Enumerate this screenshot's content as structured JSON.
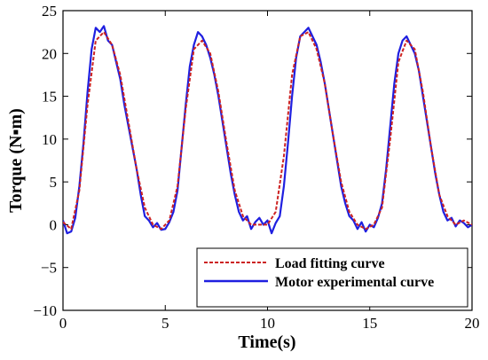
{
  "chart_data": {
    "type": "line",
    "xlabel": "Time(s)",
    "ylabel": "Torque (N▪m)",
    "xlim": [
      0,
      20
    ],
    "ylim": [
      -10,
      25
    ],
    "xticks": [
      0,
      5,
      10,
      15,
      20
    ],
    "yticks": [
      -10,
      -5,
      0,
      5,
      10,
      15,
      20,
      25
    ],
    "xtick_labels": [
      "0",
      "5",
      "10",
      "15",
      "20"
    ],
    "ytick_labels": [
      "−10",
      "−5",
      "0",
      "5",
      "10",
      "15",
      "20",
      "25"
    ],
    "grid": false,
    "legend_position": "bottom-right",
    "series": [
      {
        "name": "Load fitting curve",
        "style": "dashed",
        "color": "#cc2222",
        "x": [
          0,
          0.4,
          0.8,
          1.2,
          1.6,
          2.0,
          2.4,
          2.8,
          3.2,
          3.6,
          4.0,
          4.4,
          4.8,
          5.2,
          5.6,
          6.0,
          6.4,
          6.8,
          7.2,
          7.6,
          8.0,
          8.4,
          8.8,
          9.2,
          9.6,
          10.0,
          10.4,
          10.8,
          11.2,
          11.6,
          12.0,
          12.4,
          12.8,
          13.2,
          13.6,
          14.0,
          14.4,
          14.8,
          15.2,
          15.6,
          16.0,
          16.4,
          16.8,
          17.2,
          17.6,
          18.0,
          18.4,
          18.8,
          19.2,
          19.6,
          20.0
        ],
        "y": [
          0.3,
          -0.5,
          4.0,
          14.0,
          21.5,
          22.5,
          21.0,
          17.5,
          12.0,
          6.5,
          2.0,
          0.0,
          -0.5,
          0.5,
          4.5,
          13.5,
          20.5,
          21.5,
          20.0,
          15.5,
          9.5,
          4.0,
          1.0,
          0.0,
          0.0,
          0.0,
          1.5,
          8.0,
          17.5,
          22.0,
          22.5,
          20.5,
          16.5,
          10.5,
          5.0,
          1.5,
          0.0,
          -0.5,
          0.0,
          2.0,
          10.0,
          19.0,
          21.5,
          20.5,
          15.5,
          9.0,
          3.5,
          1.0,
          0.0,
          0.5,
          0.0
        ]
      },
      {
        "name": "Motor experimental curve",
        "style": "solid",
        "color": "#1f1fe0",
        "x": [
          0,
          0.2,
          0.4,
          0.6,
          0.8,
          1.0,
          1.2,
          1.4,
          1.6,
          1.8,
          2.0,
          2.2,
          2.4,
          2.6,
          2.8,
          3.0,
          3.2,
          3.4,
          3.6,
          3.8,
          4.0,
          4.2,
          4.4,
          4.6,
          4.8,
          5.0,
          5.2,
          5.4,
          5.6,
          5.8,
          6.0,
          6.2,
          6.4,
          6.6,
          6.8,
          7.0,
          7.2,
          7.4,
          7.6,
          7.8,
          8.0,
          8.2,
          8.4,
          8.6,
          8.8,
          9.0,
          9.2,
          9.4,
          9.6,
          9.8,
          10.0,
          10.2,
          10.4,
          10.6,
          10.8,
          11.0,
          11.2,
          11.4,
          11.6,
          11.8,
          12.0,
          12.2,
          12.4,
          12.6,
          12.8,
          13.0,
          13.2,
          13.4,
          13.6,
          13.8,
          14.0,
          14.2,
          14.4,
          14.6,
          14.8,
          15.0,
          15.2,
          15.4,
          15.6,
          15.8,
          16.0,
          16.2,
          16.4,
          16.6,
          16.8,
          17.0,
          17.2,
          17.4,
          17.6,
          17.8,
          18.0,
          18.2,
          18.4,
          18.6,
          18.8,
          19.0,
          19.2,
          19.4,
          19.6,
          19.8,
          20.0
        ],
        "y": [
          0.5,
          -1.0,
          -0.8,
          0.8,
          4.5,
          9.5,
          15.5,
          20.5,
          23.0,
          22.5,
          23.2,
          21.5,
          21.0,
          19.0,
          17.0,
          14.0,
          11.5,
          9.0,
          6.5,
          3.5,
          1.0,
          0.5,
          -0.3,
          0.2,
          -0.6,
          -0.5,
          0.3,
          1.5,
          4.0,
          9.0,
          14.0,
          18.5,
          21.0,
          22.5,
          22.0,
          21.0,
          19.5,
          17.5,
          15.0,
          12.0,
          9.0,
          6.0,
          3.5,
          1.5,
          0.5,
          1.0,
          -0.5,
          0.3,
          0.8,
          0.0,
          0.5,
          -1.0,
          0.2,
          1.0,
          4.5,
          9.5,
          15.0,
          19.5,
          22.0,
          22.5,
          23.0,
          22.0,
          21.0,
          19.0,
          16.5,
          13.5,
          10.5,
          7.5,
          4.5,
          2.5,
          1.0,
          0.5,
          -0.5,
          0.3,
          -0.8,
          0.0,
          -0.3,
          0.8,
          2.5,
          6.5,
          11.5,
          16.5,
          20.0,
          21.5,
          22.0,
          21.0,
          20.0,
          18.0,
          15.0,
          12.0,
          9.0,
          6.0,
          3.5,
          1.5,
          0.5,
          0.8,
          -0.2,
          0.5,
          0.2,
          -0.3,
          0.0
        ]
      }
    ]
  }
}
